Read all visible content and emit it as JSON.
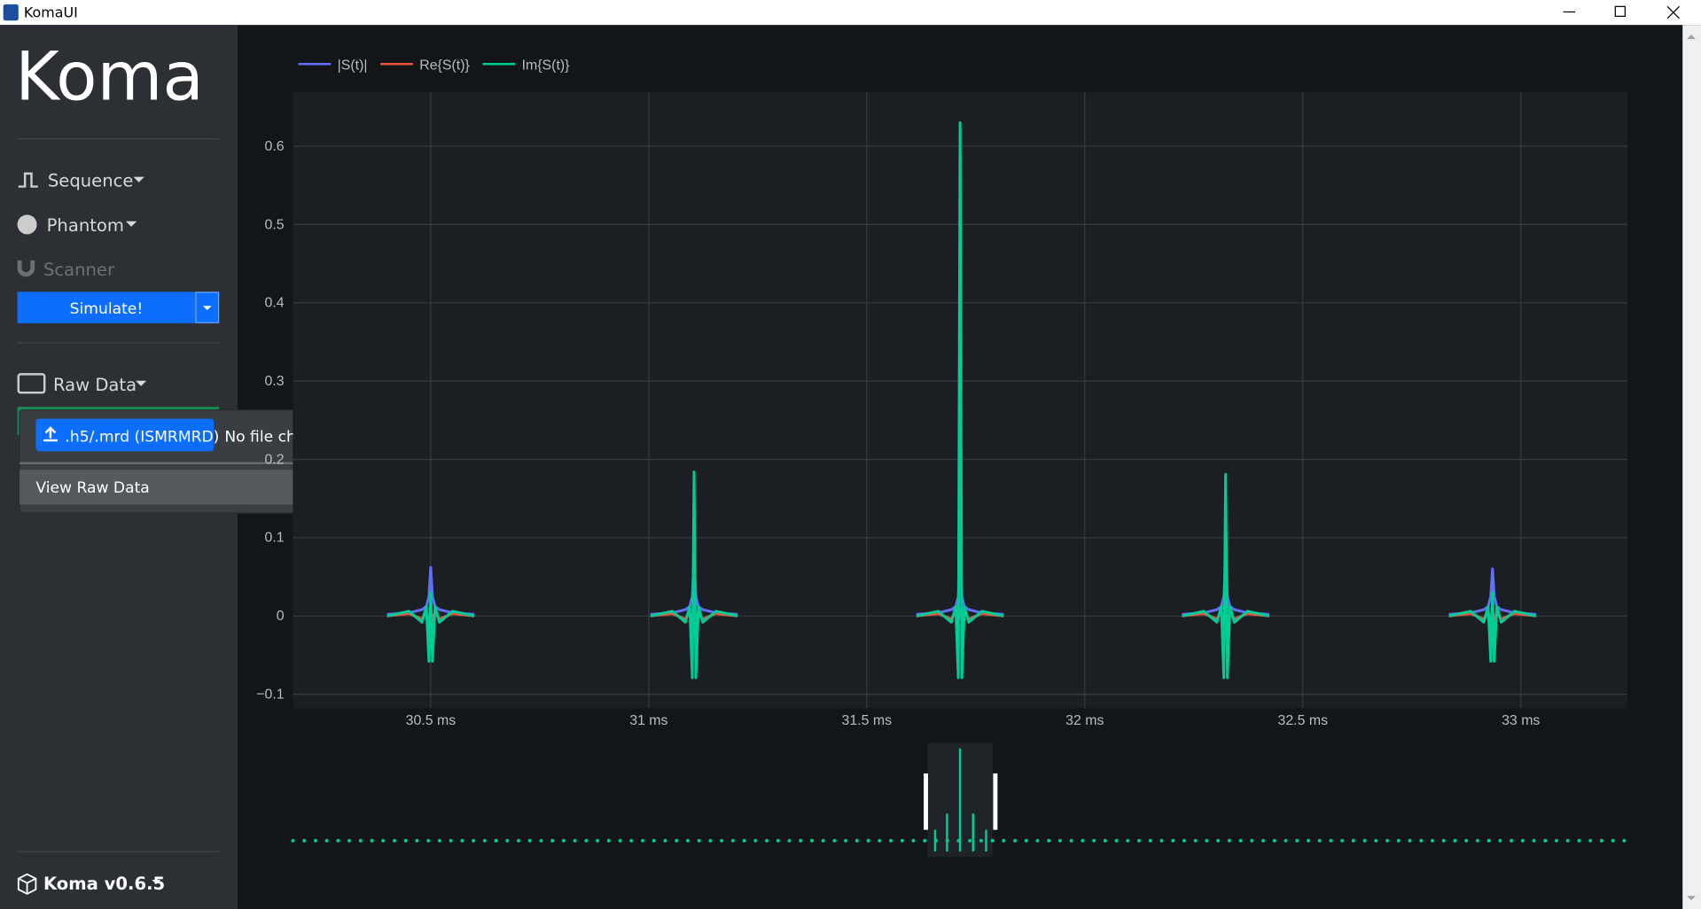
{
  "window": {
    "title": "KomaUI"
  },
  "sidebar": {
    "logo": "Koma",
    "menu": [
      "Sequence",
      "Phantom",
      "Scanner"
    ],
    "simulate": "Simulate!",
    "raw_data": "Raw Data",
    "version": "Koma v0.6.5"
  },
  "dropdown": {
    "upload": ".h5/.mrd (ISMRMRD)",
    "file_status": "No file chosen",
    "view": "View Raw Data"
  },
  "chart_data": {
    "type": "line",
    "x": [
      30.4,
      30.45,
      30.48,
      30.49,
      30.496,
      30.5,
      30.504,
      30.51,
      30.52,
      30.55,
      30.6,
      30.8,
      31.004,
      31.054,
      31.084,
      31.094,
      31.1,
      31.104,
      31.108,
      31.114,
      31.124,
      31.154,
      31.204,
      31.41,
      31.614,
      31.664,
      31.694,
      31.704,
      31.71,
      31.714,
      31.718,
      31.724,
      31.734,
      31.764,
      31.814,
      32.02,
      32.223,
      32.273,
      32.303,
      32.313,
      32.319,
      32.323,
      32.327,
      32.333,
      32.343,
      32.373,
      32.423,
      32.63,
      32.835,
      32.885,
      32.915,
      32.925,
      32.931,
      32.935,
      32.939,
      32.945,
      32.955,
      32.985,
      33.035
    ],
    "series": [
      {
        "name": "|S(t)|",
        "color": "#636efa",
        "values": [
          0.002,
          0.004,
          0.008,
          0.012,
          0.025,
          0.062,
          0.025,
          0.012,
          0.008,
          0.004,
          0.002,
          null,
          0.002,
          0.004,
          0.008,
          0.012,
          0.025,
          0.076,
          0.025,
          0.012,
          0.008,
          0.004,
          0.002,
          null,
          0.002,
          0.004,
          0.008,
          0.012,
          0.025,
          0.1,
          0.025,
          0.012,
          0.008,
          0.004,
          0.002,
          null,
          0.002,
          0.004,
          0.008,
          0.012,
          0.025,
          0.077,
          0.025,
          0.012,
          0.008,
          0.004,
          0.002,
          null,
          0.002,
          0.004,
          0.008,
          0.012,
          0.025,
          0.06,
          0.025,
          0.012,
          0.008,
          0.004,
          0.002
        ]
      },
      {
        "name": "Re{S(t)}",
        "color": "#ef553b",
        "values": [
          0,
          0.003,
          -0.004,
          0.005,
          -0.006,
          0.008,
          -0.006,
          0.005,
          -0.004,
          0.003,
          0,
          null,
          0,
          0.003,
          -0.004,
          0.005,
          -0.006,
          0.008,
          -0.006,
          0.005,
          -0.004,
          0.003,
          0,
          null,
          0,
          0.003,
          -0.004,
          0.005,
          -0.006,
          0.008,
          -0.006,
          0.005,
          -0.004,
          0.003,
          0,
          null,
          0,
          0.003,
          -0.004,
          0.005,
          -0.006,
          0.008,
          -0.006,
          0.005,
          -0.004,
          0.003,
          0,
          null,
          0,
          0.003,
          -0.004,
          0.005,
          -0.006,
          0.008,
          -0.006,
          0.005,
          -0.004,
          0.003,
          0
        ]
      },
      {
        "name": "Im{S(t)}",
        "color": "#00cc96",
        "values": [
          0,
          0.006,
          -0.008,
          0.012,
          -0.058,
          0.03,
          -0.058,
          0.012,
          -0.008,
          0.006,
          0,
          null,
          0,
          0.006,
          -0.008,
          0.012,
          -0.079,
          0.184,
          -0.079,
          0.012,
          -0.008,
          0.006,
          0,
          null,
          0,
          0.006,
          -0.008,
          0.012,
          -0.079,
          0.63,
          -0.079,
          0.012,
          -0.008,
          0.006,
          0,
          null,
          0,
          0.006,
          -0.008,
          0.012,
          -0.079,
          0.181,
          -0.079,
          0.012,
          -0.008,
          0.006,
          0,
          null,
          0,
          0.006,
          -0.008,
          0.012,
          -0.058,
          0.03,
          -0.058,
          0.012,
          -0.008,
          0.006,
          0
        ]
      }
    ],
    "xlim": [
      30.184,
      33.244
    ],
    "xticks": [
      {
        "value": 30.5,
        "label": "30.5 ms"
      },
      {
        "value": 31,
        "label": "31 ms"
      },
      {
        "value": 31.5,
        "label": "31.5 ms"
      },
      {
        "value": 32,
        "label": "32 ms"
      },
      {
        "value": 32.5,
        "label": "32.5 ms"
      },
      {
        "value": 33,
        "label": "33 ms"
      }
    ],
    "ylim": [
      -0.118,
      0.669
    ],
    "yticks": [
      {
        "value": -0.1,
        "label": "−0.1"
      },
      0,
      0.1,
      0.2,
      0.3,
      0.4,
      0.5,
      0.6
    ],
    "grid": true,
    "legend": "top-left"
  }
}
